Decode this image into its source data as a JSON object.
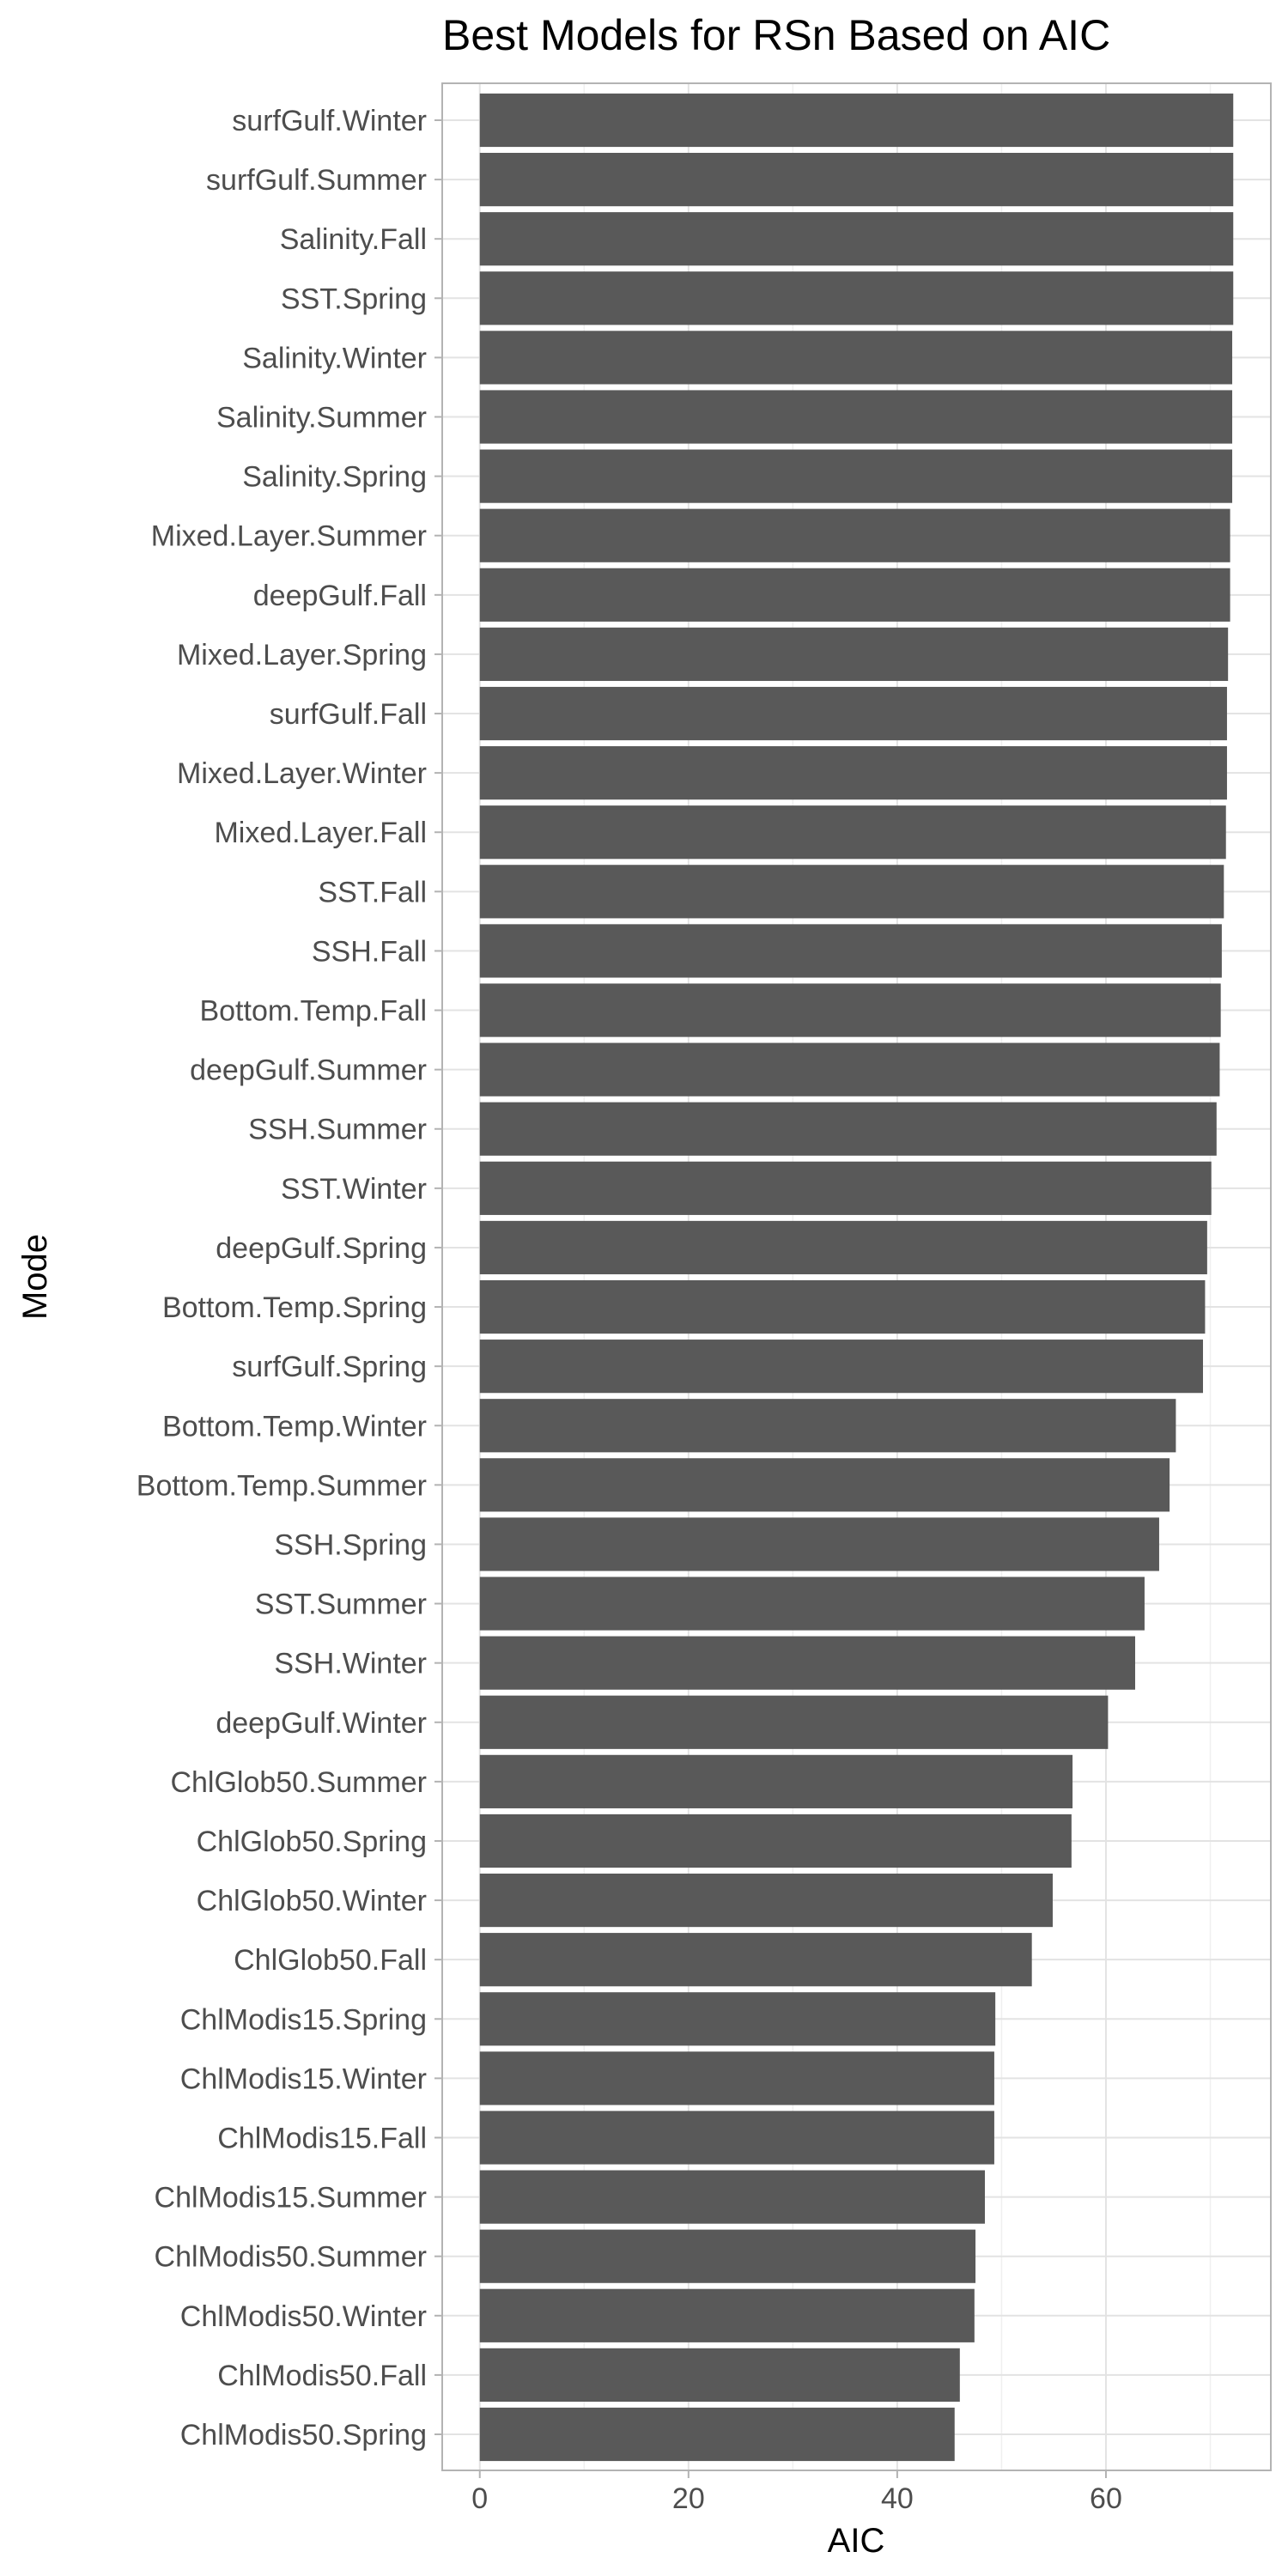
{
  "chart_data": {
    "type": "bar",
    "orientation": "horizontal",
    "title": "Best Models for RSn Based on AIC",
    "xlabel": "AIC",
    "ylabel": "Mode",
    "xlim": [
      -3.6,
      75.8
    ],
    "xticks": [
      0,
      20,
      40,
      60
    ],
    "grid": true,
    "theme": "light",
    "bar_color": "#595959",
    "categories": [
      "surfGulf.Winter",
      "surfGulf.Summer",
      "Salinity.Fall",
      "SST.Spring",
      "Salinity.Winter",
      "Salinity.Summer",
      "Salinity.Spring",
      "Mixed.Layer.Summer",
      "deepGulf.Fall",
      "Mixed.Layer.Spring",
      "surfGulf.Fall",
      "Mixed.Layer.Winter",
      "Mixed.Layer.Fall",
      "SST.Fall",
      "SSH.Fall",
      "Bottom.Temp.Fall",
      "deepGulf.Summer",
      "SSH.Summer",
      "SST.Winter",
      "deepGulf.Spring",
      "Bottom.Temp.Spring",
      "surfGulf.Spring",
      "Bottom.Temp.Winter",
      "Bottom.Temp.Summer",
      "SSH.Spring",
      "SST.Summer",
      "SSH.Winter",
      "deepGulf.Winter",
      "ChlGlob50.Summer",
      "ChlGlob50.Spring",
      "ChlGlob50.Winter",
      "ChlGlob50.Fall",
      "ChlModis15.Spring",
      "ChlModis15.Winter",
      "ChlModis15.Fall",
      "ChlModis15.Summer",
      "ChlModis50.Summer",
      "ChlModis50.Winter",
      "ChlModis50.Fall",
      "ChlModis50.Spring"
    ],
    "values": [
      72.2,
      72.2,
      72.2,
      72.2,
      72.1,
      72.1,
      72.1,
      71.9,
      71.9,
      71.7,
      71.6,
      71.6,
      71.5,
      71.3,
      71.1,
      71.0,
      70.9,
      70.6,
      70.1,
      69.7,
      69.5,
      69.3,
      66.7,
      66.1,
      65.1,
      63.7,
      62.8,
      60.2,
      56.8,
      56.7,
      54.9,
      52.9,
      49.4,
      49.3,
      49.3,
      48.4,
      47.5,
      47.4,
      46.0,
      45.5
    ]
  }
}
